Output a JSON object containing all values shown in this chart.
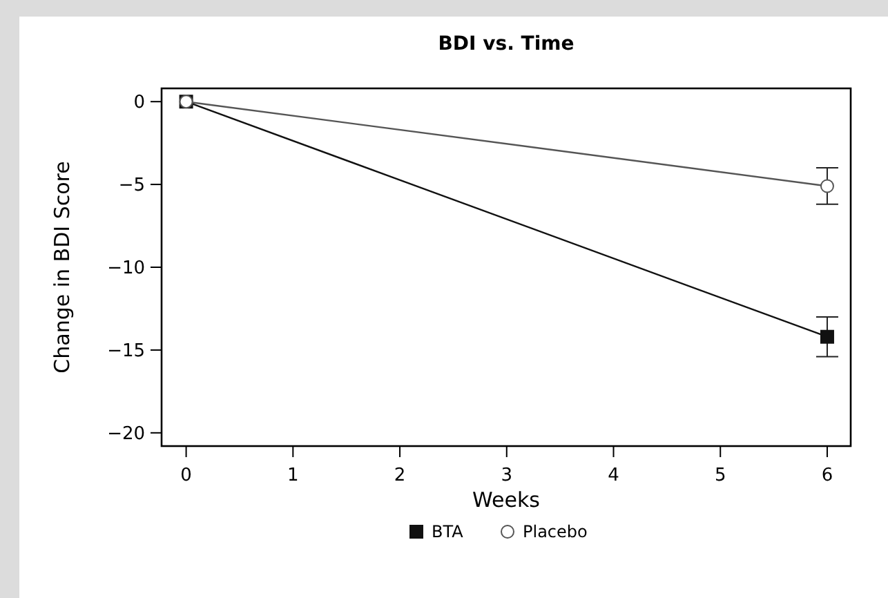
{
  "chart_data": {
    "type": "line",
    "title": "BDI vs. Time",
    "xlabel": "Weeks",
    "ylabel": "Change in BDI Score",
    "x": [
      0,
      6
    ],
    "series": [
      {
        "name": "BTA",
        "color": "#111111",
        "marker": "square",
        "values": [
          0,
          -14.2
        ],
        "errors": [
          null,
          1.2
        ]
      },
      {
        "name": "Placebo",
        "color": "#555555",
        "marker": "circle",
        "values": [
          0,
          -5.1
        ],
        "errors": [
          null,
          1.1
        ]
      }
    ],
    "xlim": [
      -0.23,
      6.22
    ],
    "xticks": [
      0,
      1,
      2,
      3,
      4,
      5,
      6
    ],
    "ylim": [
      -20.8,
      0.8
    ],
    "yticks": [
      0,
      {
        "value": -5,
        "label": "−5"
      },
      {
        "value": -10,
        "label": "−10"
      },
      {
        "value": -15,
        "label": "−15"
      },
      {
        "value": -20,
        "label": "−20"
      }
    ],
    "grid": false,
    "legend": "bottom",
    "line_style": "solid"
  }
}
